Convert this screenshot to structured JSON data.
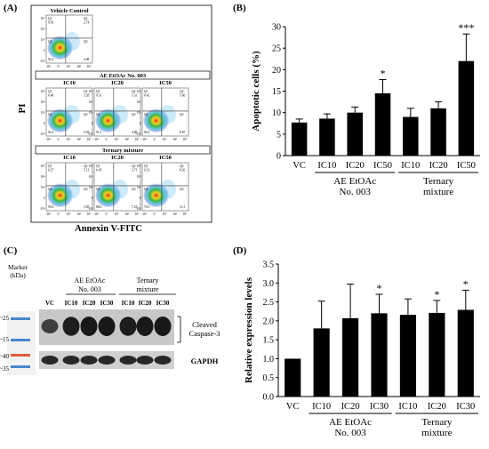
{
  "panels": {
    "a_label": "(A)",
    "b_label": "(B)",
    "c_label": "(C)",
    "d_label": "(D)"
  },
  "flow": {
    "y_axis_label": "PI",
    "x_axis_label": "Annexin V-FITC",
    "vehicle_title": "Vehicle Control",
    "group1_title": "AE EtOAc No. 003",
    "group2_title": "Ternary mixture",
    "vehicle_quadrants": {
      "q1": "0.93",
      "q2": "2.74",
      "q3": "4.08",
      "q4": "92.3"
    },
    "rows": [
      {
        "group": "AE EtOAc No. 003",
        "plots": [
          {
            "label": "IC10",
            "q1": "0.48",
            "q2": "3.28",
            "q3": "3.93",
            "q4": "92.3"
          },
          {
            "label": "IC20",
            "q1": "0.31",
            "q2": "3.31",
            "q3": "4.88",
            "q4": "91.5"
          },
          {
            "label": "IC50",
            "q1": "0.42",
            "q2": "5.66",
            "q3": "8.87",
            "q4": "85.0"
          }
        ]
      },
      {
        "group": "Ternary mixture",
        "plots": [
          {
            "label": "IC10",
            "q1": "0.27",
            "q2": "5.13",
            "q3": "3.95",
            "q4": "90.6"
          },
          {
            "label": "IC20",
            "q1": "0.45",
            "q2": "3.71",
            "q3": "7.23",
            "q4": "88.6"
          },
          {
            "label": "IC50",
            "q1": "0.31",
            "q2": "8.26",
            "q3": "13.1",
            "q4": "78.3"
          }
        ]
      }
    ],
    "tick_labels": [
      "10⁵",
      "10⁴",
      "10³",
      "0",
      "-10³"
    ]
  },
  "western": {
    "marker_label": "Marker\n(kDa)",
    "marker_sizes": [
      "~25",
      "~15",
      "~40",
      "~35"
    ],
    "group1_label": "AE EtOAc\nNo. 003",
    "group2_label": "Ternary\nmixture",
    "lanes": [
      "VC",
      "IC10",
      "IC20",
      "IC30",
      "IC10",
      "IC20",
      "IC30"
    ],
    "band_top_label": "Cleaved\nCaspase-3",
    "band_bottom_label": "GAPDH"
  },
  "chart_data": [
    {
      "id": "B",
      "type": "bar",
      "ylabel": "Apoptotic cells (%)",
      "xlabel": "",
      "categories": [
        "VC",
        "IC10",
        "IC20",
        "IC50",
        "IC10",
        "IC20",
        "IC50"
      ],
      "values": [
        7.7,
        8.6,
        10.0,
        14.5,
        9.0,
        11.0,
        22.0
      ],
      "errors": [
        0.8,
        1.1,
        1.3,
        3.2,
        2.0,
        1.5,
        6.3
      ],
      "significance": [
        "",
        "",
        "",
        "*",
        "",
        "",
        "***"
      ],
      "groups": [
        {
          "label": "AE EtOAc\nNo. 003",
          "from": 1,
          "to": 3
        },
        {
          "label": "Ternary\nmixture",
          "from": 4,
          "to": 6
        }
      ],
      "ylim": [
        0,
        30
      ],
      "yticks": [
        0,
        5,
        10,
        15,
        20,
        25,
        30
      ],
      "grid": false,
      "color": "#000000"
    },
    {
      "id": "D",
      "type": "bar",
      "ylabel": "Relative expression levels",
      "xlabel": "",
      "categories": [
        "VC",
        "IC10",
        "IC20",
        "IC30",
        "IC10",
        "IC20",
        "IC30"
      ],
      "values": [
        1.0,
        1.8,
        2.07,
        2.2,
        2.16,
        2.21,
        2.29
      ],
      "errors": [
        0.0,
        0.72,
        0.9,
        0.5,
        0.42,
        0.33,
        0.52
      ],
      "significance": [
        "",
        "",
        "",
        "*",
        "",
        "*",
        "*"
      ],
      "groups": [
        {
          "label": "AE EtOAc\nNo. 003",
          "from": 1,
          "to": 3
        },
        {
          "label": "Ternary\nmixture",
          "from": 4,
          "to": 6
        }
      ],
      "ylim": [
        0,
        3.5
      ],
      "yticks": [
        0.0,
        0.5,
        1.0,
        1.5,
        2.0,
        2.5,
        3.0,
        3.5
      ],
      "grid": false,
      "color": "#000000"
    }
  ]
}
